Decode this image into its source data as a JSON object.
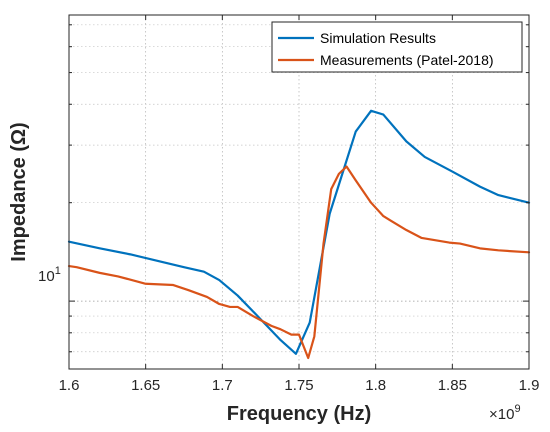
{
  "chart_data": {
    "type": "line",
    "xlabel": "Frequency (Hz)",
    "ylabel": "Impedance (Ω)",
    "x_exponent_label": "×10",
    "x_exponent_power": "9",
    "x_scale": 1000000000,
    "xlim": [
      1.6,
      1.9
    ],
    "x_ticks": [
      1.6,
      1.65,
      1.7,
      1.75,
      1.8,
      1.85,
      1.9
    ],
    "x_tick_labels": [
      "1.6",
      "1.65",
      "1.7",
      "1.75",
      "1.8",
      "1.85",
      "1.9"
    ],
    "y_scale": "log",
    "ylim": [
      6.2,
      75
    ],
    "y_tick_label_base": "10",
    "y_tick_label_power": "1",
    "y_tick_value": 10,
    "grid": true,
    "legend_position": "top-right",
    "series": [
      {
        "name": "Simulation Results",
        "color": "#0072BD",
        "x": [
          1.6,
          1.62,
          1.64,
          1.66,
          1.675,
          1.688,
          1.698,
          1.71,
          1.722,
          1.738,
          1.748,
          1.757,
          1.77,
          1.787,
          1.797,
          1.805,
          1.82,
          1.832,
          1.85,
          1.868,
          1.88,
          1.9
        ],
        "y": [
          15.2,
          14.5,
          13.9,
          13.2,
          12.7,
          12.3,
          11.6,
          10.4,
          9.1,
          7.6,
          6.9,
          8.6,
          18.5,
          33,
          38.2,
          37.2,
          30.8,
          27.6,
          24.9,
          22.4,
          21.1,
          20
        ]
      },
      {
        "name": "Measurements (Patel-2018)",
        "color": "#D95319",
        "x": [
          1.6,
          1.605,
          1.62,
          1.632,
          1.65,
          1.668,
          1.678,
          1.69,
          1.698,
          1.705,
          1.71,
          1.72,
          1.732,
          1.738,
          1.745,
          1.75,
          1.756,
          1.76,
          1.766,
          1.771,
          1.776,
          1.781,
          1.787,
          1.797,
          1.805,
          1.81,
          1.82,
          1.83,
          1.848,
          1.855,
          1.868,
          1.88,
          1.9
        ],
        "y": [
          12.8,
          12.7,
          12.2,
          11.9,
          11.3,
          11.2,
          10.8,
          10.3,
          9.8,
          9.6,
          9.6,
          9.0,
          8.4,
          8.2,
          7.9,
          7.9,
          6.7,
          7.8,
          15.0,
          22.0,
          24.5,
          25.8,
          23.4,
          20.0,
          18.2,
          17.6,
          16.5,
          15.6,
          15.1,
          15.0,
          14.5,
          14.3,
          14.1
        ]
      }
    ]
  }
}
